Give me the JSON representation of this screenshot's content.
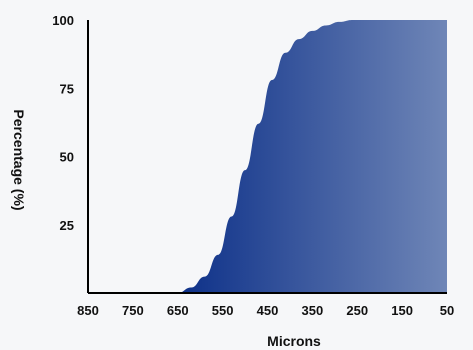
{
  "chart_data": {
    "type": "area",
    "title": "",
    "xlabel": "Microns",
    "ylabel": "Percentage (%)",
    "x_reversed": true,
    "xlim": [
      850,
      50
    ],
    "ylim": [
      0,
      100
    ],
    "x_ticks": [
      850,
      750,
      650,
      550,
      450,
      350,
      250,
      150,
      50
    ],
    "y_ticks": [
      25,
      50,
      75,
      100
    ],
    "grid": false,
    "legend": "none",
    "series": [
      {
        "x": [
          850,
          750,
          650,
          620,
          590,
          560,
          530,
          500,
          470,
          440,
          410,
          380,
          350,
          320,
          290,
          260,
          250,
          200,
          150,
          100,
          50
        ],
        "y": [
          0,
          0,
          0,
          2,
          6,
          14,
          28,
          45,
          62,
          78,
          88,
          93,
          96,
          98,
          99.3,
          100,
          100,
          100,
          100,
          100,
          100
        ]
      }
    ],
    "colors": {
      "fill_start": "#0a2a80",
      "fill_mid": "#062a85",
      "fill_end": "#6f86b7",
      "axis": "#000000"
    }
  }
}
